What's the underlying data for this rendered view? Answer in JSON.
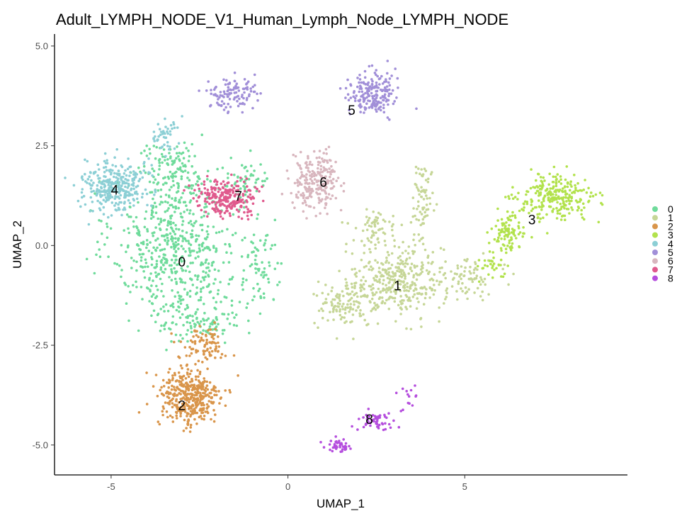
{
  "chart_data": {
    "type": "scatter",
    "title": "Adult_LYMPH_NODE_V1_Human_Lymph_Node_LYMPH_NODE",
    "xlabel": "UMAP_1",
    "ylabel": "UMAP_2",
    "xlim": [
      -6.6,
      9.6
    ],
    "ylim": [
      -5.75,
      5.3
    ],
    "xticks": [
      -5,
      0,
      5
    ],
    "xtick_labels": [
      "-5",
      "0",
      "5"
    ],
    "yticks": [
      -5,
      -2.5,
      0,
      2.5,
      5
    ],
    "ytick_labels": [
      "-5.0",
      "-2.5",
      "0.0",
      "2.5",
      "5.0"
    ],
    "grid": false,
    "legend_position": "right",
    "series": [
      {
        "name": "0",
        "color": "#6FDB9B",
        "label_position": [
          -3.0,
          -0.4
        ],
        "regions": [
          {
            "center": [
              -3.2,
              0.0
            ],
            "spread": [
              1.6,
              1.5
            ],
            "count": 520
          },
          {
            "center": [
              -3.2,
              1.8
            ],
            "spread": [
              1.0,
              0.7
            ],
            "count": 140
          },
          {
            "center": [
              -2.5,
              -1.8
            ],
            "spread": [
              1.1,
              0.6
            ],
            "count": 130
          },
          {
            "center": [
              -0.8,
              -0.5
            ],
            "spread": [
              0.6,
              0.9
            ],
            "count": 70
          },
          {
            "center": [
              -1.2,
              1.6
            ],
            "spread": [
              0.7,
              0.5
            ],
            "count": 60
          }
        ]
      },
      {
        "name": "1",
        "color": "#C6D697",
        "label_position": [
          3.1,
          -1.0
        ],
        "regions": [
          {
            "center": [
              3.1,
              -0.9
            ],
            "spread": [
              1.2,
              0.8
            ],
            "count": 360
          },
          {
            "center": [
              1.6,
              -1.5
            ],
            "spread": [
              0.8,
              0.5
            ],
            "count": 110
          },
          {
            "center": [
              3.8,
              1.2
            ],
            "spread": [
              0.3,
              0.8
            ],
            "count": 70
          },
          {
            "center": [
              5.2,
              -0.8
            ],
            "spread": [
              0.7,
              0.4
            ],
            "count": 70
          },
          {
            "center": [
              2.4,
              0.4
            ],
            "spread": [
              0.6,
              0.5
            ],
            "count": 60
          }
        ]
      },
      {
        "name": "2",
        "color": "#D9954A",
        "label_position": [
          -3.0,
          -4.0
        ],
        "regions": [
          {
            "center": [
              -2.8,
              -3.8
            ],
            "spread": [
              0.8,
              0.7
            ],
            "count": 380
          },
          {
            "center": [
              -2.4,
              -2.5
            ],
            "spread": [
              0.6,
              0.4
            ],
            "count": 90
          }
        ]
      },
      {
        "name": "3",
        "color": "#B2E24C",
        "label_position": [
          6.9,
          0.65
        ],
        "regions": [
          {
            "center": [
              7.6,
              1.2
            ],
            "spread": [
              1.0,
              0.5
            ],
            "count": 260
          },
          {
            "center": [
              6.2,
              0.3
            ],
            "spread": [
              0.4,
              0.4
            ],
            "count": 90
          },
          {
            "center": [
              5.7,
              -0.5
            ],
            "spread": [
              0.4,
              0.3
            ],
            "count": 30
          }
        ]
      },
      {
        "name": "4",
        "color": "#8CCFD5",
        "label_position": [
          -4.9,
          1.4
        ],
        "regions": [
          {
            "center": [
              -4.9,
              1.5
            ],
            "spread": [
              0.8,
              0.6
            ],
            "count": 320
          },
          {
            "center": [
              -3.5,
              2.8
            ],
            "spread": [
              0.4,
              0.4
            ],
            "count": 45
          }
        ]
      },
      {
        "name": "5",
        "color": "#A18FD8",
        "label_position": [
          1.8,
          3.4
        ],
        "regions": [
          {
            "center": [
              2.4,
              3.8
            ],
            "spread": [
              0.6,
              0.5
            ],
            "count": 190
          },
          {
            "center": [
              -1.6,
              3.8
            ],
            "spread": [
              0.6,
              0.4
            ],
            "count": 110
          }
        ]
      },
      {
        "name": "6",
        "color": "#D8B6BE",
        "label_position": [
          1.0,
          1.6
        ],
        "regions": [
          {
            "center": [
              0.8,
              1.6
            ],
            "spread": [
              0.6,
              0.6
            ],
            "count": 230
          }
        ]
      },
      {
        "name": "7",
        "color": "#E05A8D",
        "label_position": [
          -1.4,
          1.25
        ],
        "regions": [
          {
            "center": [
              -1.7,
              1.2
            ],
            "spread": [
              0.8,
              0.4
            ],
            "count": 230
          }
        ]
      },
      {
        "name": "8",
        "color": "#B54EDE",
        "label_position": [
          2.3,
          -4.35
        ],
        "regions": [
          {
            "center": [
              1.4,
              -5.0
            ],
            "spread": [
              0.3,
              0.15
            ],
            "count": 40
          },
          {
            "center": [
              2.5,
              -4.4
            ],
            "spread": [
              0.55,
              0.2
            ],
            "count": 55
          },
          {
            "center": [
              3.4,
              -3.7
            ],
            "spread": [
              0.3,
              0.3
            ],
            "count": 14
          }
        ]
      }
    ]
  }
}
